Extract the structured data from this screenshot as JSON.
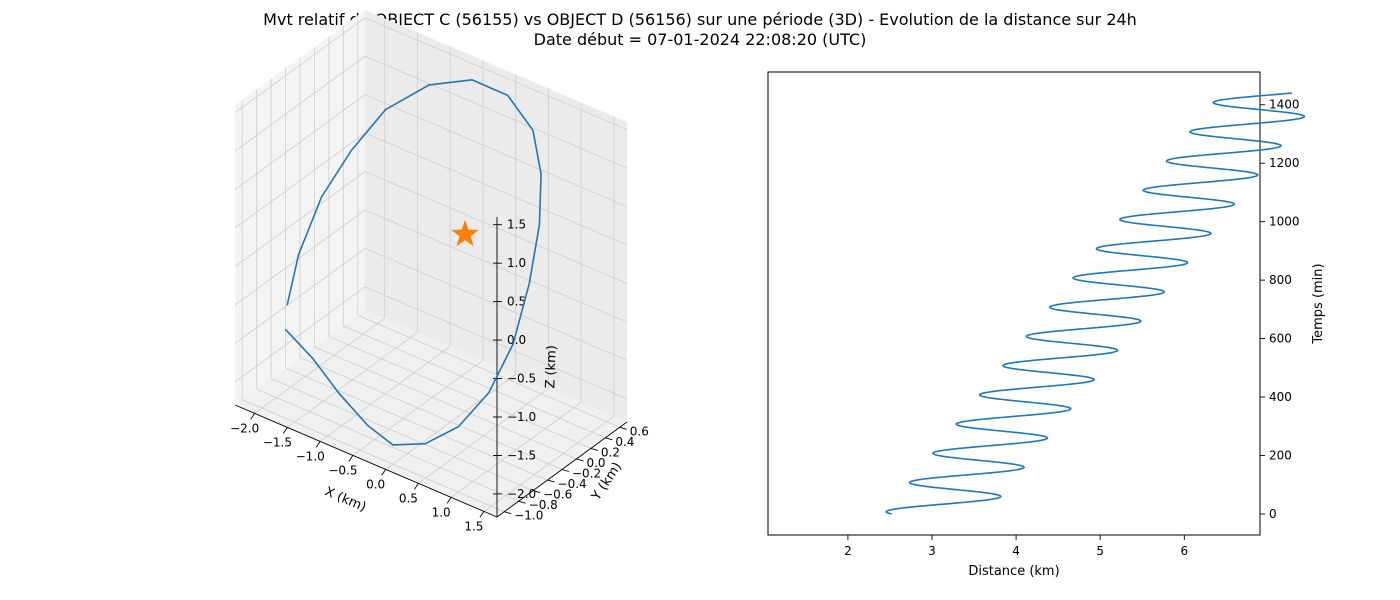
{
  "figure": {
    "title_line1": "Mvt relatif de OBJECT C (56155) vs OBJECT D (56156) sur une période (3D) - Evolution de la distance sur 24h",
    "title_line2": "Date début = 07-01-2024 22:08:20 (UTC)"
  },
  "colors": {
    "series": "#1f77b4",
    "marker": "#ff7f0e",
    "pane": "#f2f2f2",
    "grid": "#d0d0d0"
  },
  "chart_data": [
    {
      "type": "line3d",
      "title": "",
      "xlabel": "X (km)",
      "ylabel": "Y (km)",
      "zlabel": "Z (km)",
      "xlim": [
        -2.3,
        1.7
      ],
      "ylim": [
        -1.1,
        0.7
      ],
      "zlim": [
        -2.3,
        1.6
      ],
      "xticks": [
        "−2.0",
        "−1.5",
        "−1.0",
        "−0.5",
        "0.0",
        "0.5",
        "1.0",
        "1.5"
      ],
      "yticks": [
        "−1.0",
        "−0.8",
        "−0.6",
        "−0.4",
        "−0.2",
        "0.0",
        "0.2",
        "0.4",
        "0.6"
      ],
      "zticks": [
        "−2.0",
        "−1.5",
        "−1.0",
        "−0.5",
        "0.0",
        "0.5",
        "1.0",
        "1.5"
      ],
      "xtick_values": [
        -2.0,
        -1.5,
        -1.0,
        -0.5,
        0.0,
        0.5,
        1.0,
        1.5
      ],
      "ytick_values": [
        -1.0,
        -0.8,
        -0.6,
        -0.4,
        -0.2,
        0.0,
        0.2,
        0.4,
        0.6
      ],
      "ztick_values": [
        -2.0,
        -1.5,
        -1.0,
        -0.5,
        0.0,
        0.5,
        1.0,
        1.5
      ],
      "grid": true,
      "trajectory": {
        "x": [
          -2.0,
          -2.1,
          -2.08,
          -1.9,
          -1.6,
          -1.1,
          -0.5,
          0.1,
          0.65,
          1.05,
          1.3,
          1.42,
          1.45,
          1.3,
          1.0,
          0.55,
          0.0,
          -0.55,
          -1.1,
          -1.55,
          -1.95
        ],
        "y": [
          -0.65,
          -0.4,
          -0.1,
          0.15,
          0.35,
          0.5,
          0.55,
          0.5,
          0.35,
          0.1,
          -0.15,
          -0.4,
          -0.65,
          -0.85,
          -1.0,
          -1.05,
          -1.0,
          -0.85,
          -0.75,
          -0.7,
          -0.72
        ],
        "z": [
          -1.2,
          -0.75,
          -0.2,
          0.3,
          0.8,
          1.2,
          1.45,
          1.5,
          1.35,
          1.1,
          0.7,
          0.15,
          -0.45,
          -1.0,
          -1.45,
          -1.8,
          -2.05,
          -2.1,
          -1.95,
          -1.7,
          -1.45
        ]
      },
      "origin_marker": {
        "x": 0.0,
        "y": 0.0,
        "z": 0.0,
        "shape": "star"
      }
    },
    {
      "type": "line",
      "title": "",
      "xlabel": "Distance (km)",
      "ylabel": "Temps (min)",
      "xlim": [
        1.05,
        6.9
      ],
      "ylim": [
        -72,
        1512
      ],
      "xticks": [
        2,
        3,
        4,
        5,
        6
      ],
      "yticks": [
        0,
        200,
        400,
        600,
        800,
        1000,
        1200,
        1400
      ],
      "yaxis_position": "right",
      "grid": false,
      "series": [
        {
          "x_start": 2.52,
          "x_end": 6.52,
          "amplitude": 0.61,
          "period_min": 100,
          "phase_shift": 1.03,
          "t_max": 1440
        }
      ]
    }
  ]
}
